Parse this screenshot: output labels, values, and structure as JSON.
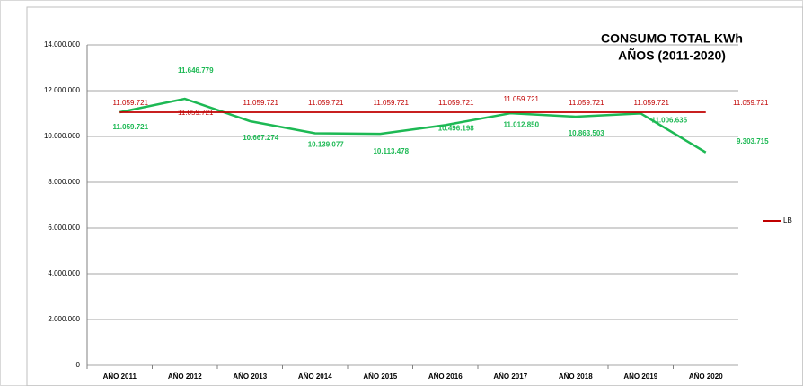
{
  "chart_data": {
    "type": "line",
    "title": "CONSUMO TOTAL KWh",
    "subtitle": "AÑOS (2011-2020)",
    "categories": [
      "AÑO 2011",
      "AÑO 2012",
      "AÑO 2013",
      "AÑO 2014",
      "AÑO 2015",
      "AÑO 2016",
      "AÑO 2017",
      "AÑO 2018",
      "AÑO 2019",
      "AÑO 2020"
    ],
    "series": [
      {
        "color": "#1db954",
        "values": [
          11059721,
          11646779,
          10667274,
          10139077,
          10113478,
          10496198,
          11012850,
          10863503,
          11006635,
          9303715
        ],
        "value_labels": [
          "11.059.721",
          "11.646.779",
          "10.667.274",
          "10.139.077",
          "10.113.478",
          "10.496.198",
          "11.012.850",
          "10.863.503",
          "11.006.635",
          "9.303.715"
        ]
      },
      {
        "name": "LB",
        "color": "#c00000",
        "values": [
          11059721,
          11059721,
          11059721,
          11059721,
          11059721,
          11059721,
          11059721,
          11059721,
          11059721,
          11059721
        ],
        "value_labels": [
          "11.059.721",
          "11.059.721",
          "11.059.721",
          "11.059.721",
          "11.059.721",
          "11.059.721",
          "11.059.721",
          "11.059.721",
          "11.059.721",
          "11.059.721"
        ]
      }
    ],
    "ylim": [
      0,
      14000000
    ],
    "yticks": [
      0,
      {
        "value": 2000000,
        "label": "2.000.000"
      },
      {
        "value": 4000000,
        "label": "4.000.000"
      },
      {
        "value": 6000000,
        "label": "6.000.000"
      },
      {
        "value": 8000000,
        "label": "8.000.000"
      },
      {
        "value": 10000000,
        "label": "10.000.000"
      },
      {
        "value": 12000000,
        "label": "12.000.000"
      },
      {
        "value": 14000000,
        "label": "14.000.000"
      }
    ],
    "grid": true,
    "legend": "right"
  }
}
